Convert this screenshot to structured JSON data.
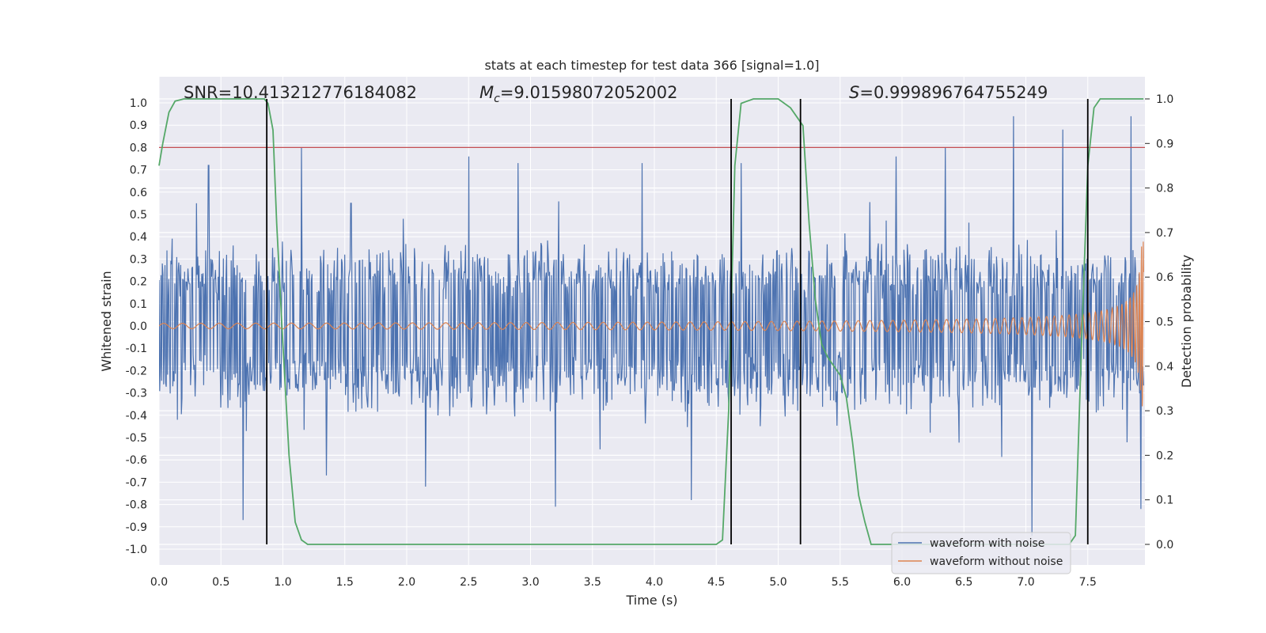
{
  "chart_data": {
    "type": "line",
    "title": "stats at each timestep for test data 366 [signal=1.0]",
    "xlabel": "Time (s)",
    "ylabel": "Whitened strain",
    "y2label": "Detection probability",
    "xlim": [
      0.0,
      7.95
    ],
    "ylim": [
      -1.08,
      1.1
    ],
    "y2lim": [
      -0.045,
      1.045
    ],
    "xticks": [
      "0.0",
      "0.5",
      "1.0",
      "1.5",
      "2.0",
      "2.5",
      "3.0",
      "3.5",
      "4.0",
      "4.5",
      "5.0",
      "5.5",
      "6.0",
      "6.5",
      "7.0",
      "7.5"
    ],
    "yticks": [
      "1.0",
      "0.9",
      "0.8",
      "0.7",
      "0.6",
      "0.5",
      "0.4",
      "0.3",
      "0.2",
      "0.1",
      "0.0",
      "-0.1",
      "-0.2",
      "-0.3",
      "-0.4",
      "-0.5",
      "-0.6",
      "-0.7",
      "-0.8",
      "-0.9",
      "-1.0"
    ],
    "y2ticks": [
      "1.0",
      "0.9",
      "0.8",
      "0.7",
      "0.6",
      "0.5",
      "0.4",
      "0.3",
      "0.2",
      "0.1",
      "0.0"
    ],
    "annotations": {
      "snr": "SNR=10.413212776184082",
      "mc_symbol": "M",
      "mc_sub": "c",
      "mc_value": "=9.01598072052002",
      "s_symbol": "S",
      "s_value": "=0.999896764755249"
    },
    "threshold": {
      "value": 0.8,
      "color": "#c44e52"
    },
    "vertical_lines_x": [
      0.87,
      4.62,
      5.18,
      7.5
    ],
    "series": [
      {
        "name": "waveform with noise",
        "color": "#4c72b0",
        "description_range": [
          -0.95,
          0.95
        ],
        "base_envelope": 0.4,
        "peaks": [
          [
            0.3,
            0.55
          ],
          [
            0.4,
            0.72
          ],
          [
            0.68,
            0.86
          ],
          [
            1.15,
            0.8
          ],
          [
            1.55,
            0.55
          ],
          [
            2.5,
            0.76
          ],
          [
            2.9,
            0.73
          ],
          [
            3.2,
            0.71
          ],
          [
            3.9,
            0.73
          ],
          [
            4.7,
            0.73
          ],
          [
            5.95,
            0.76
          ],
          [
            6.35,
            0.8
          ],
          [
            6.9,
            0.94
          ],
          [
            7.05,
            0.79
          ],
          [
            7.3,
            0.88
          ],
          [
            7.85,
            0.94
          ]
        ],
        "troughs": [
          [
            0.68,
            -0.87
          ],
          [
            3.2,
            -0.81
          ],
          [
            4.3,
            -0.78
          ],
          [
            7.05,
            -0.94
          ],
          [
            7.93,
            -0.82
          ],
          [
            1.35,
            -0.67
          ],
          [
            2.15,
            -0.72
          ]
        ]
      },
      {
        "name": "waveform without noise",
        "color": "#dd8452",
        "start_amplitude": 0.012,
        "end_amplitude": 0.47,
        "start_freq_hz": 3.0,
        "merger_time": 7.95
      },
      {
        "name": "Detection probability",
        "color": "#55a868",
        "axis": "right",
        "x": [
          0.0,
          0.03,
          0.08,
          0.13,
          0.2,
          0.85,
          0.88,
          0.92,
          0.95,
          1.0,
          1.05,
          1.1,
          1.15,
          1.2,
          1.5,
          3.0,
          4.5,
          4.55,
          4.6,
          4.65,
          4.7,
          4.8,
          5.0,
          5.1,
          5.2,
          5.25,
          5.3,
          5.35,
          5.4,
          5.45,
          5.5,
          5.55,
          5.6,
          5.65,
          5.7,
          5.75,
          5.8,
          7.35,
          7.4,
          7.45,
          7.5,
          7.55,
          7.6,
          7.65,
          7.95
        ],
        "values": [
          0.85,
          0.9,
          0.97,
          0.995,
          1.0,
          1.0,
          0.99,
          0.93,
          0.72,
          0.45,
          0.2,
          0.05,
          0.01,
          0.0,
          0.0,
          0.0,
          0.0,
          0.01,
          0.3,
          0.85,
          0.99,
          1.0,
          1.0,
          0.98,
          0.94,
          0.72,
          0.55,
          0.45,
          0.42,
          0.4,
          0.38,
          0.33,
          0.23,
          0.11,
          0.05,
          0.0,
          0.0,
          0.0,
          0.02,
          0.45,
          0.85,
          0.98,
          1.0,
          1.0,
          1.0
        ]
      }
    ],
    "legend": {
      "position": "lower-right",
      "entries": [
        "waveform with noise",
        "waveform without noise"
      ]
    }
  }
}
